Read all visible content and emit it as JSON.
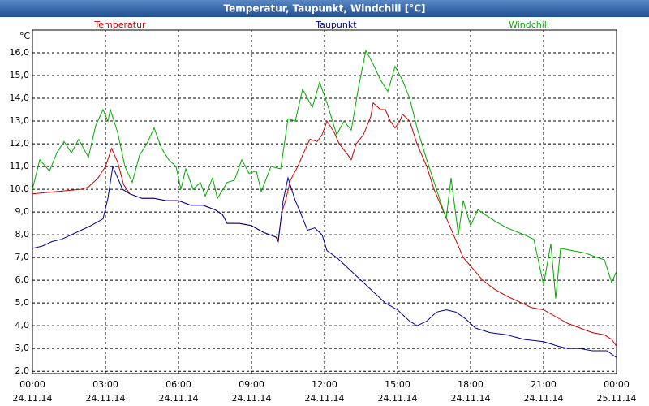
{
  "chart_data": {
    "type": "line",
    "title": "Temperatur, Taupunkt, Windchill [°C]",
    "y_unit": "°C",
    "xlim": [
      0,
      24
    ],
    "xticks": [
      {
        "value": 0,
        "label": "00:00",
        "date": "24.11.14"
      },
      {
        "value": 3,
        "label": "03:00",
        "date": "24.11.14"
      },
      {
        "value": 6,
        "label": "06:00",
        "date": "24.11.14"
      },
      {
        "value": 9,
        "label": "09:00",
        "date": "24.11.14"
      },
      {
        "value": 12,
        "label": "12:00",
        "date": "24.11.14"
      },
      {
        "value": 15,
        "label": "15:00",
        "date": "24.11.14"
      },
      {
        "value": 18,
        "label": "18:00",
        "date": "24.11.14"
      },
      {
        "value": 21,
        "label": "21:00",
        "date": "24.11.14"
      },
      {
        "value": 24,
        "label": "00:00",
        "date": "25.11.14"
      }
    ],
    "ylim": [
      1.9,
      17.0
    ],
    "yticks": [
      {
        "value": 2,
        "label": "2,0"
      },
      {
        "value": 3,
        "label": "3,0"
      },
      {
        "value": 4,
        "label": "4,0"
      },
      {
        "value": 5,
        "label": "5,0"
      },
      {
        "value": 6,
        "label": "6,0"
      },
      {
        "value": 7,
        "label": "7,0"
      },
      {
        "value": 8,
        "label": "8,0"
      },
      {
        "value": 9,
        "label": "9,0"
      },
      {
        "value": 10,
        "label": "10,0"
      },
      {
        "value": 11,
        "label": "11,0"
      },
      {
        "value": 12,
        "label": "12,0"
      },
      {
        "value": 13,
        "label": "13,0"
      },
      {
        "value": 14,
        "label": "14,0"
      },
      {
        "value": 15,
        "label": "15,0"
      },
      {
        "value": 16,
        "label": "16,0"
      }
    ],
    "grid": true,
    "legend": "top",
    "series": [
      {
        "name": "Temperatur",
        "color": "#cc0000",
        "x": [
          0,
          1,
          2,
          2.3,
          2.7,
          3.0,
          3.25,
          3.5,
          3.75,
          4,
          4.5,
          5,
          5.5,
          6,
          6.5,
          7,
          7.5,
          7.8,
          8,
          8.5,
          9,
          9.5,
          10,
          10.1,
          10.25,
          10.4,
          10.6,
          10.9,
          11.1,
          11.4,
          11.7,
          11.9,
          12.1,
          12.4,
          12.6,
          12.9,
          13.1,
          13.3,
          13.6,
          13.9,
          14.0,
          14.3,
          14.5,
          14.7,
          14.9,
          15.1,
          15.2,
          15.5,
          15.8,
          16.2,
          16.5,
          16.9,
          17.3,
          17.7,
          18.1,
          18.5,
          19,
          19.5,
          20.1,
          20.5,
          21,
          21.5,
          22,
          22.5,
          23,
          23.5,
          23.8,
          24
        ],
        "values": [
          9.8,
          9.9,
          10.0,
          10.1,
          10.5,
          11.0,
          11.8,
          11.2,
          10.2,
          9.8,
          9.6,
          9.6,
          9.5,
          9.5,
          9.3,
          9.3,
          9.1,
          8.9,
          8.5,
          8.5,
          8.4,
          8.1,
          7.9,
          7.8,
          9.0,
          9.5,
          10.4,
          11.0,
          11.5,
          12.2,
          12.1,
          12.4,
          13.0,
          12.5,
          12.0,
          11.6,
          11.3,
          12.0,
          12.4,
          13.2,
          13.8,
          13.5,
          13.5,
          13.0,
          12.7,
          13.0,
          13.3,
          13.0,
          12.0,
          11.0,
          10.0,
          9.0,
          8.0,
          7.0,
          6.5,
          6.0,
          5.6,
          5.3,
          5.0,
          4.8,
          4.7,
          4.4,
          4.1,
          3.9,
          3.7,
          3.6,
          3.4,
          3.1
        ]
      },
      {
        "name": "Taupunkt",
        "color": "#000099",
        "x": [
          0,
          0.4,
          0.8,
          1.2,
          1.6,
          2.0,
          2.4,
          2.9,
          3.1,
          3.3,
          3.5,
          3.7,
          4,
          4.5,
          5,
          5.5,
          6,
          6.5,
          7,
          7.5,
          7.8,
          8,
          8.5,
          9,
          9.5,
          10,
          10.1,
          10.3,
          10.5,
          10.8,
          11.0,
          11.3,
          11.6,
          11.9,
          12.1,
          12.5,
          13.0,
          13.5,
          14.0,
          14.5,
          15.0,
          15.5,
          15.8,
          16.2,
          16.6,
          17.0,
          17.4,
          17.8,
          18.2,
          18.8,
          19.5,
          20.2,
          21,
          21.6,
          22,
          22.5,
          23,
          23.6,
          24
        ],
        "values": [
          7.4,
          7.5,
          7.7,
          7.8,
          8.0,
          8.2,
          8.4,
          8.7,
          9.6,
          11.0,
          10.5,
          10.0,
          9.8,
          9.6,
          9.6,
          9.5,
          9.5,
          9.3,
          9.3,
          9.1,
          8.9,
          8.5,
          8.5,
          8.4,
          8.1,
          7.9,
          7.7,
          9.5,
          10.5,
          9.5,
          9.0,
          8.2,
          8.3,
          8.0,
          7.3,
          7.0,
          6.5,
          6.0,
          5.5,
          5.0,
          4.7,
          4.2,
          4.0,
          4.2,
          4.6,
          4.7,
          4.6,
          4.3,
          3.9,
          3.7,
          3.6,
          3.4,
          3.3,
          3.1,
          3.0,
          3.0,
          2.9,
          2.9,
          2.6
        ]
      },
      {
        "name": "Windchill",
        "color": "#00aa00",
        "x": [
          0,
          0.3,
          0.7,
          1,
          1.3,
          1.6,
          1.9,
          2.3,
          2.6,
          2.9,
          3.1,
          3.2,
          3.5,
          3.8,
          4.1,
          4.4,
          4.7,
          5.0,
          5.3,
          5.6,
          5.9,
          6.1,
          6.3,
          6.6,
          6.9,
          7.1,
          7.4,
          7.6,
          8.0,
          8.3,
          8.6,
          8.9,
          9.2,
          9.4,
          9.8,
          10.2,
          10.5,
          10.8,
          11.1,
          11.5,
          11.8,
          12.1,
          12.5,
          12.8,
          13.1,
          13.4,
          13.7,
          14.0,
          14.3,
          14.6,
          14.9,
          15.2,
          15.5,
          15.8,
          16.2,
          16.6,
          17.0,
          17.2,
          17.5,
          17.7,
          18.0,
          18.3,
          19,
          19.5,
          20.2,
          20.6,
          21.0,
          21.3,
          21.5,
          21.7,
          22.2,
          22.7,
          23.2,
          23.5,
          23.8,
          24
        ],
        "values": [
          10.0,
          11.3,
          10.8,
          11.6,
          12.1,
          11.6,
          12.2,
          11.4,
          12.8,
          13.5,
          13.0,
          13.5,
          12.5,
          11.0,
          10.3,
          11.5,
          12.0,
          12.7,
          11.8,
          11.3,
          11.0,
          10.0,
          10.9,
          10.0,
          10.3,
          9.7,
          10.5,
          9.6,
          10.3,
          10.4,
          11.3,
          10.7,
          10.8,
          9.9,
          11.0,
          10.9,
          13.1,
          13.0,
          14.4,
          13.6,
          14.7,
          13.8,
          12.4,
          13.0,
          12.6,
          14.5,
          16.1,
          15.5,
          14.8,
          14.3,
          15.4,
          14.8,
          14.0,
          12.7,
          11.3,
          10.0,
          8.7,
          10.5,
          8.0,
          9.5,
          8.4,
          9.1,
          8.6,
          8.3,
          8.0,
          7.8,
          5.8,
          7.6,
          5.2,
          7.4,
          7.3,
          7.2,
          7.0,
          6.9,
          5.9,
          6.4
        ]
      }
    ]
  }
}
